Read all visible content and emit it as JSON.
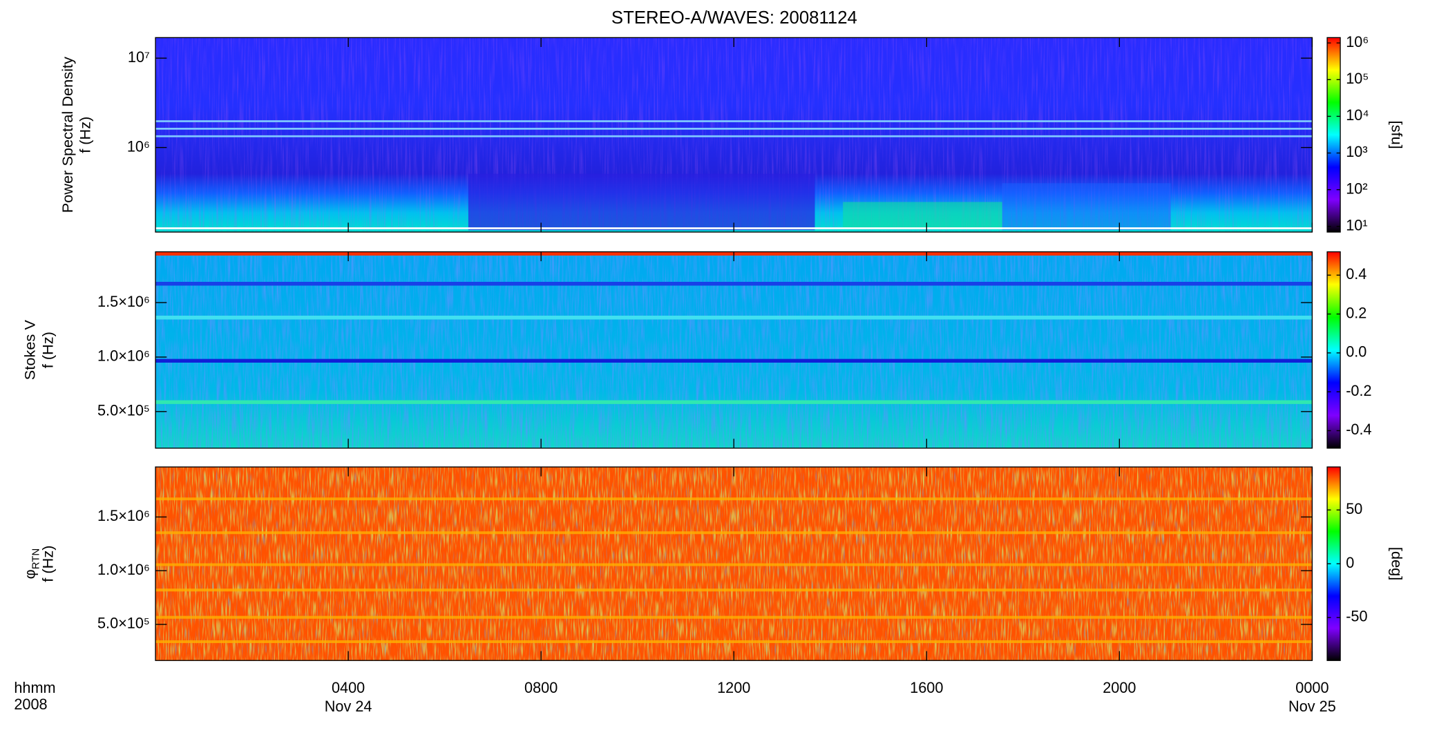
{
  "title": "STEREO-A/WAVES: 20081124",
  "colormap": [
    "#000000",
    "#7f00ff",
    "#0000ff",
    "#00ffff",
    "#00ff00",
    "#ffff00",
    "#ff0000"
  ],
  "chart_data": [
    {
      "type": "spectrogram",
      "ylabel": [
        "Power Spectral Density",
        "f (Hz)"
      ],
      "ylog": true,
      "ylim": [
        113000,
        17000000
      ],
      "yticks": [
        {
          "value": 1000000,
          "label": "10⁶"
        },
        {
          "value": 10000000,
          "label": "10⁷"
        }
      ],
      "colorbar": {
        "log": true,
        "lim": [
          7,
          1400000
        ],
        "label": "[sfu]",
        "ticks": [
          {
            "value": 10,
            "label": "10¹"
          },
          {
            "value": 100,
            "label": "10²"
          },
          {
            "value": 1000,
            "label": "10³"
          },
          {
            "value": 10000,
            "label": "10⁴"
          },
          {
            "value": 100000,
            "label": "10⁵"
          },
          {
            "value": 1000000,
            "label": "10⁶"
          }
        ]
      }
    },
    {
      "type": "spectrogram",
      "ylabel": [
        "Stokes V",
        "f (Hz)"
      ],
      "ylog": false,
      "ylim": [
        164000,
        1966000
      ],
      "yticks": [
        {
          "value": 500000,
          "label": "5.0×10⁵"
        },
        {
          "value": 1000000,
          "label": "1.0×10⁶"
        },
        {
          "value": 1500000,
          "label": "1.5×10⁶"
        }
      ],
      "colorbar": {
        "log": false,
        "lim": [
          -0.49,
          0.52
        ],
        "ticks": [
          -0.4,
          -0.2,
          {
            "value": 0,
            "label": "0.0"
          },
          0.2,
          0.4
        ]
      }
    },
    {
      "type": "spectrogram",
      "ylabel": [
        "φ",
        "f (Hz)"
      ],
      "ylabel_subscript": "RTN",
      "ylog": false,
      "ylim": [
        164000,
        1966000
      ],
      "yticks": [
        {
          "value": 500000,
          "label": "5.0×10⁵"
        },
        {
          "value": 1000000,
          "label": "1.0×10⁶"
        },
        {
          "value": 1500000,
          "label": "1.5×10⁶"
        }
      ],
      "colorbar": {
        "log": false,
        "lim": [
          -90,
          90
        ],
        "label": "[deg]",
        "ticks": [
          -50,
          0,
          50
        ]
      },
      "xlim": [
        0,
        24
      ],
      "xticks": [
        {
          "value": 4,
          "label": "0400",
          "date": "Nov 24"
        },
        {
          "value": 8,
          "label": "0800"
        },
        {
          "value": 12,
          "label": "1200"
        },
        {
          "value": 16,
          "label": "1600"
        },
        {
          "value": 20,
          "label": "2000"
        },
        {
          "value": 24,
          "label": "0000",
          "date": "Nov 25"
        }
      ],
      "xlabel": [
        "hhmm",
        "2008"
      ]
    }
  ]
}
